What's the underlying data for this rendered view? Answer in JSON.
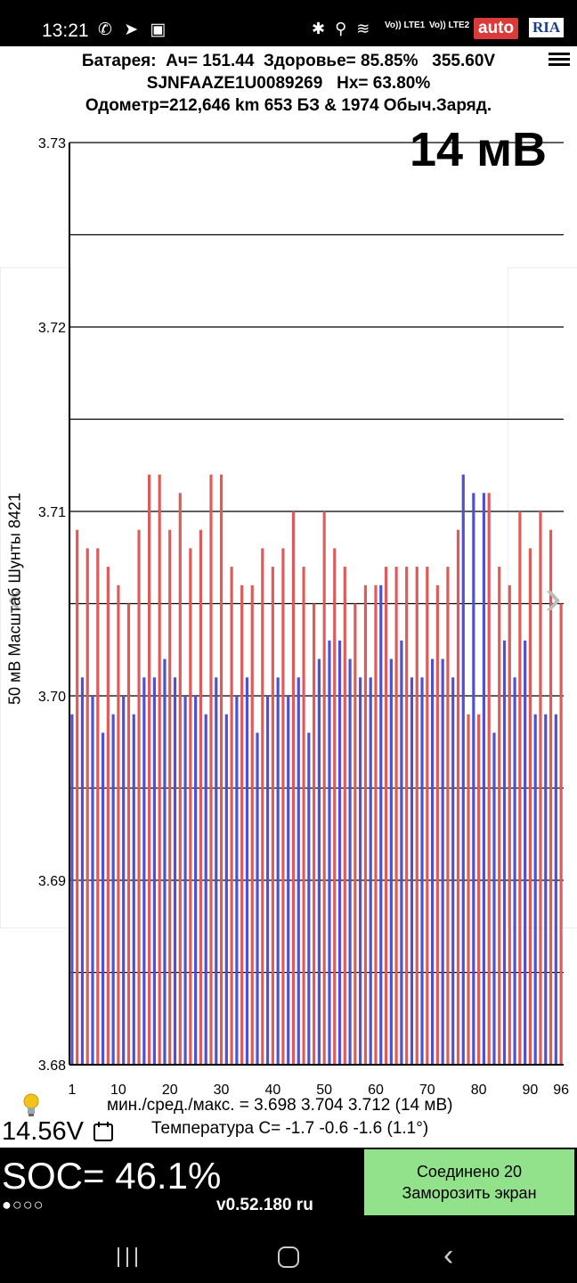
{
  "status_bar": {
    "time": "13:21",
    "left_icons": "✆ ➤ ▣",
    "right_icons": "✱ ⚲ ≋",
    "lte1": "Vo)) LTE1",
    "lte2": "Vo)) LTE2",
    "signal_icons": "▂▄▆ ▂▄▆"
  },
  "watermark": {
    "auto": "auto",
    "ria": "RIA"
  },
  "header": {
    "line1": "Батарея:  Ач= 151.44  Здоровье= 85.85%   355.60V",
    "line2": "SJNFAAZE1U0089269   Hx= 63.80%",
    "line3": "Одометр=212,646 km 653 БЗ & 1974 Обыч.Заряд."
  },
  "scale_badge": "14 мВ",
  "y_axis_label": "50 мВ Масштаб  Шунты 8421",
  "chart_data": {
    "type": "bar",
    "ylim": [
      3.68,
      3.73
    ],
    "yticks": [
      "3.73",
      "3.72",
      "3.71",
      "3.70",
      "3.69",
      "3.68"
    ],
    "xticks": [
      "1",
      "10",
      "20",
      "30",
      "40",
      "50",
      "60",
      "70",
      "80",
      "90",
      "96"
    ],
    "grid": true,
    "colors": {
      "odd": "#5050d0",
      "even": "#e05a5a"
    },
    "values": [
      3.699,
      3.709,
      3.701,
      3.708,
      3.7,
      3.708,
      3.698,
      3.707,
      3.699,
      3.706,
      3.7,
      3.705,
      3.699,
      3.709,
      3.701,
      3.712,
      3.701,
      3.712,
      3.702,
      3.709,
      3.701,
      3.711,
      3.7,
      3.708,
      3.7,
      3.709,
      3.699,
      3.712,
      3.701,
      3.712,
      3.699,
      3.707,
      3.7,
      3.706,
      3.701,
      3.706,
      3.698,
      3.708,
      3.7,
      3.707,
      3.701,
      3.708,
      3.7,
      3.71,
      3.701,
      3.707,
      3.698,
      3.705,
      3.702,
      3.71,
      3.703,
      3.708,
      3.703,
      3.707,
      3.702,
      3.705,
      3.701,
      3.706,
      3.701,
      3.706,
      3.706,
      3.707,
      3.702,
      3.707,
      3.703,
      3.707,
      3.701,
      3.707,
      3.701,
      3.707,
      3.702,
      3.706,
      3.702,
      3.707,
      3.701,
      3.709,
      3.712,
      3.699,
      3.711,
      3.699,
      3.711,
      3.711,
      3.698,
      3.707,
      3.703,
      3.706,
      3.701,
      3.71,
      3.703,
      3.708,
      3.699,
      3.71,
      3.699,
      3.709,
      3.699,
      3.705
    ]
  },
  "stats": {
    "minmax": "мин./сред./макс. = 3.698 3.704 3.712  (14 мВ)",
    "temperature": "Температура С= -1.7  -0.6  -1.6  (1.1°)"
  },
  "voltage": "14.56V",
  "soc": "SOC= 46.1%",
  "dots": "●○○○",
  "version": "v0.52.180 ru",
  "connect_button": {
    "line1": "Соединено 20",
    "line2": "Заморозить экран"
  },
  "nav_icons": {
    "recents": "recents-icon",
    "home": "home-icon",
    "back": "back-icon"
  }
}
